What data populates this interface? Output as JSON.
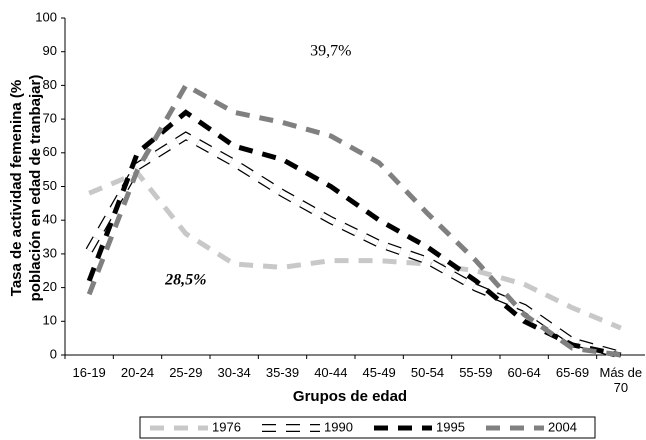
{
  "chart_data": {
    "type": "line",
    "y_label": "Tasa de actividad femenina (% población en edad de tranbajar)",
    "x_label": "Grupos de edad",
    "categories": [
      "16-19",
      "20-24",
      "25-29",
      "30-34",
      "35-39",
      "40-44",
      "45-49",
      "50-54",
      "55-59",
      "60-64",
      "65-69",
      "Más de 70"
    ],
    "series": [
      {
        "name": "1976",
        "color": "#c8c8c8",
        "values": [
          48,
          54,
          36,
          27,
          26,
          28,
          28,
          27,
          25,
          21,
          14,
          8
        ]
      },
      {
        "name": "1990",
        "color": "#ffffff",
        "values": [
          31,
          56,
          65,
          57,
          48,
          40,
          33,
          28,
          20,
          14,
          4,
          0
        ]
      },
      {
        "name": "1995",
        "color": "#000000",
        "values": [
          22,
          60,
          72,
          62,
          58,
          50,
          40,
          32,
          22,
          10,
          3,
          0
        ]
      },
      {
        "name": "2004",
        "color": "#808080",
        "values": [
          18,
          55,
          80,
          72,
          69,
          65,
          57,
          42,
          28,
          12,
          2,
          0
        ]
      }
    ],
    "annotations": [
      {
        "text": "39,7%",
        "category": 5,
        "y": 90,
        "color": "#999999"
      },
      {
        "text": "28,5%",
        "category": 2,
        "y": 22,
        "color": "#000000"
      }
    ],
    "ylim": [
      0,
      100
    ],
    "yticks": [
      0,
      10,
      20,
      30,
      40,
      50,
      60,
      70,
      80,
      90,
      100
    ],
    "grid": false
  }
}
